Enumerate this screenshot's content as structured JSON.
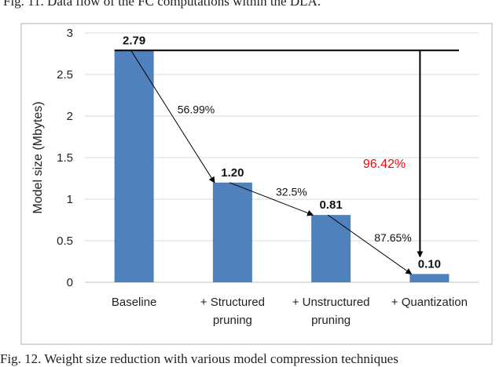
{
  "captions": {
    "top": "Fig. 11.   Data flow of the FC computations within the DLA.",
    "bottom": "Fig. 12.   Weight size reduction with various model compression techniques"
  },
  "chart_data": {
    "type": "bar",
    "categories": [
      [
        "Baseline"
      ],
      [
        "+ Structured",
        "pruning"
      ],
      [
        "+ Unstructured",
        "pruning"
      ],
      [
        "+ Quantization"
      ]
    ],
    "values": [
      2.79,
      1.2,
      0.81,
      0.1
    ],
    "value_labels": [
      "2.79",
      "1.20",
      "0.81",
      "0.10"
    ],
    "step_reductions": [
      "56.99%",
      "32.5%",
      "87.65%"
    ],
    "total_reduction": "96.42%",
    "ylabel": "Model size (Mbytes)",
    "ylim": [
      0,
      3
    ],
    "yticks": [
      {
        "value": 0,
        "label": "0"
      },
      {
        "value": 0.5,
        "label": "0.5"
      },
      {
        "value": 1,
        "label": "1"
      },
      {
        "value": 1.5,
        "label": "1.5"
      },
      {
        "value": 2,
        "label": "2"
      },
      {
        "value": 2.5,
        "label": "2.5"
      },
      {
        "value": 3,
        "label": "3"
      }
    ],
    "grid": true,
    "colors": {
      "bar": "#4f81bd",
      "total_label": "#ff0000",
      "grid": "#d9d9d9",
      "frame": "#b0b0b0"
    }
  }
}
